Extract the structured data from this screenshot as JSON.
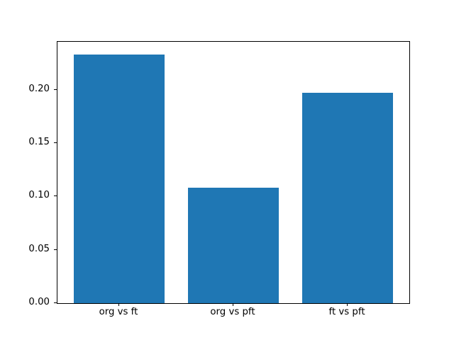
{
  "chart_data": {
    "type": "bar",
    "title": "",
    "xlabel": "",
    "ylabel": "",
    "categories": [
      "org vs ft",
      "org vs pft",
      "ft vs pft"
    ],
    "values": [
      0.233,
      0.108,
      0.197
    ],
    "ylim": [
      0,
      0.245
    ],
    "yticks": [
      0.0,
      0.05,
      0.1,
      0.15,
      0.2
    ],
    "ytick_labels": [
      "0.00",
      "0.05",
      "0.10",
      "0.15",
      "0.20"
    ],
    "bar_color": "#1f77b4",
    "frame_color": "#000000",
    "background_color": "#ffffff",
    "grid": false,
    "legend": null,
    "bar_width_fraction": 0.8
  }
}
